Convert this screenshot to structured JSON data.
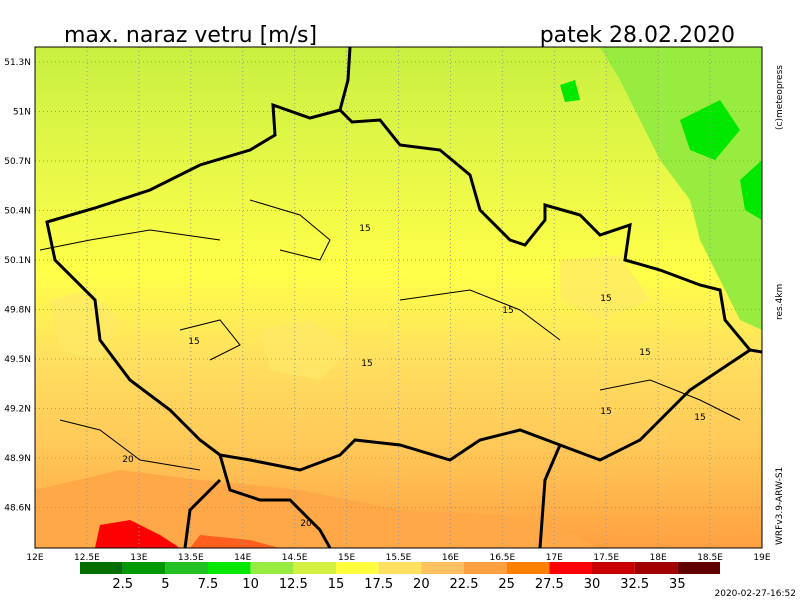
{
  "header": {
    "title": "max. naraz vetru [m/s]",
    "date": "patek 28.02.2020"
  },
  "map": {
    "lat_labels": [
      "51.3N",
      "51N",
      "50.7N",
      "50.4N",
      "50.1N",
      "49.8N",
      "49.5N",
      "49.2N",
      "48.9N",
      "48.6N"
    ],
    "lon_labels": [
      "12E",
      "12.5E",
      "13E",
      "13.5E",
      "14E",
      "14.5E",
      "15E",
      "15.5E",
      "16E",
      "16.5E",
      "17E",
      "17.5E",
      "18E",
      "18.5E",
      "19E"
    ],
    "contour_labels": [
      "15",
      "15",
      "15",
      "15",
      "15",
      "15",
      "15",
      "15",
      "20",
      "20"
    ]
  },
  "legend": {
    "bins": [
      2.5,
      5,
      7.5,
      10,
      12.5,
      15,
      17.5,
      20,
      22.5,
      25,
      27.5,
      30,
      32.5,
      35
    ],
    "colors": [
      "#006e00",
      "#009a00",
      "#22c022",
      "#00e800",
      "#98ec40",
      "#d4f040",
      "#ffff40",
      "#ffe060",
      "#ffc060",
      "#ffa040",
      "#ff8000",
      "#ff0000",
      "#c80000",
      "#a00000",
      "#600000"
    ]
  },
  "side": {
    "copyright": "(c)meteopress",
    "resolution": "res.4km",
    "model": "WRFv3.9-ARW-S1",
    "timestamp": "2020-02-27-16:52"
  }
}
